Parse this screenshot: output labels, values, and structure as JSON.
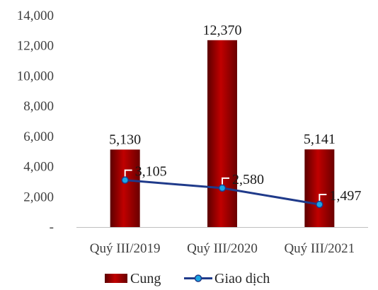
{
  "chart_data": {
    "type": "bar",
    "categories": [
      "Quý III/2019",
      "Quý III/2020",
      "Quý III/2021"
    ],
    "series": [
      {
        "name": "Cung",
        "kind": "bar",
        "color": "#C00000",
        "values": [
          5130,
          12370,
          5141
        ],
        "labels": [
          "5,130",
          "12,370",
          "5,141"
        ]
      },
      {
        "name": "Giao dịch",
        "kind": "line",
        "color": "#1F3A8A",
        "marker_color": "#19A7E6",
        "values": [
          3105,
          2580,
          1497
        ],
        "labels": [
          "3,105",
          "2,580",
          "1,497"
        ]
      }
    ],
    "ylim": [
      0,
      14000
    ],
    "yticks": [
      0,
      2000,
      4000,
      6000,
      8000,
      10000,
      12000,
      14000
    ],
    "ytick_labels": [
      "-",
      "2,000",
      "4,000",
      "6,000",
      "8,000",
      "10,000",
      "12,000",
      "14,000"
    ],
    "grid": false,
    "legend_position": "bottom"
  }
}
